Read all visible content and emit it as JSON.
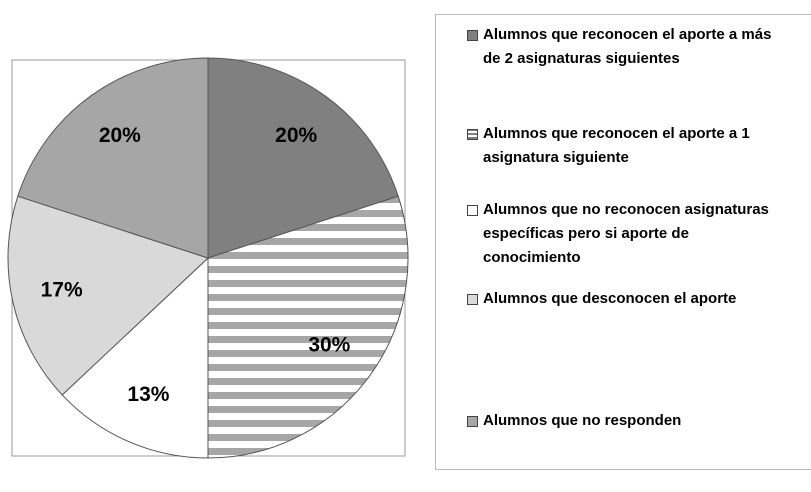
{
  "chart_data": {
    "type": "pie",
    "categories": [
      "Alumnos que reconocen el aporte a más de 2 asignaturas siguientes",
      "Alumnos que reconocen el aporte a 1 asignatura siguiente",
      "Alumnos que no reconocen asignaturas específicas pero si aporte de conocimiento",
      "Alumnos que desconocen el aporte",
      "Alumnos que no responden"
    ],
    "values": [
      20,
      30,
      13,
      17,
      20
    ],
    "value_labels": [
      "20%",
      "30%",
      "13%",
      "17%",
      "20%"
    ],
    "colors": [
      "#808080",
      "#ffffff",
      "#ffffff",
      "#d9d9d9",
      "#a6a6a6"
    ],
    "hatched": [
      false,
      true,
      false,
      false,
      false
    ],
    "legend": "right"
  }
}
